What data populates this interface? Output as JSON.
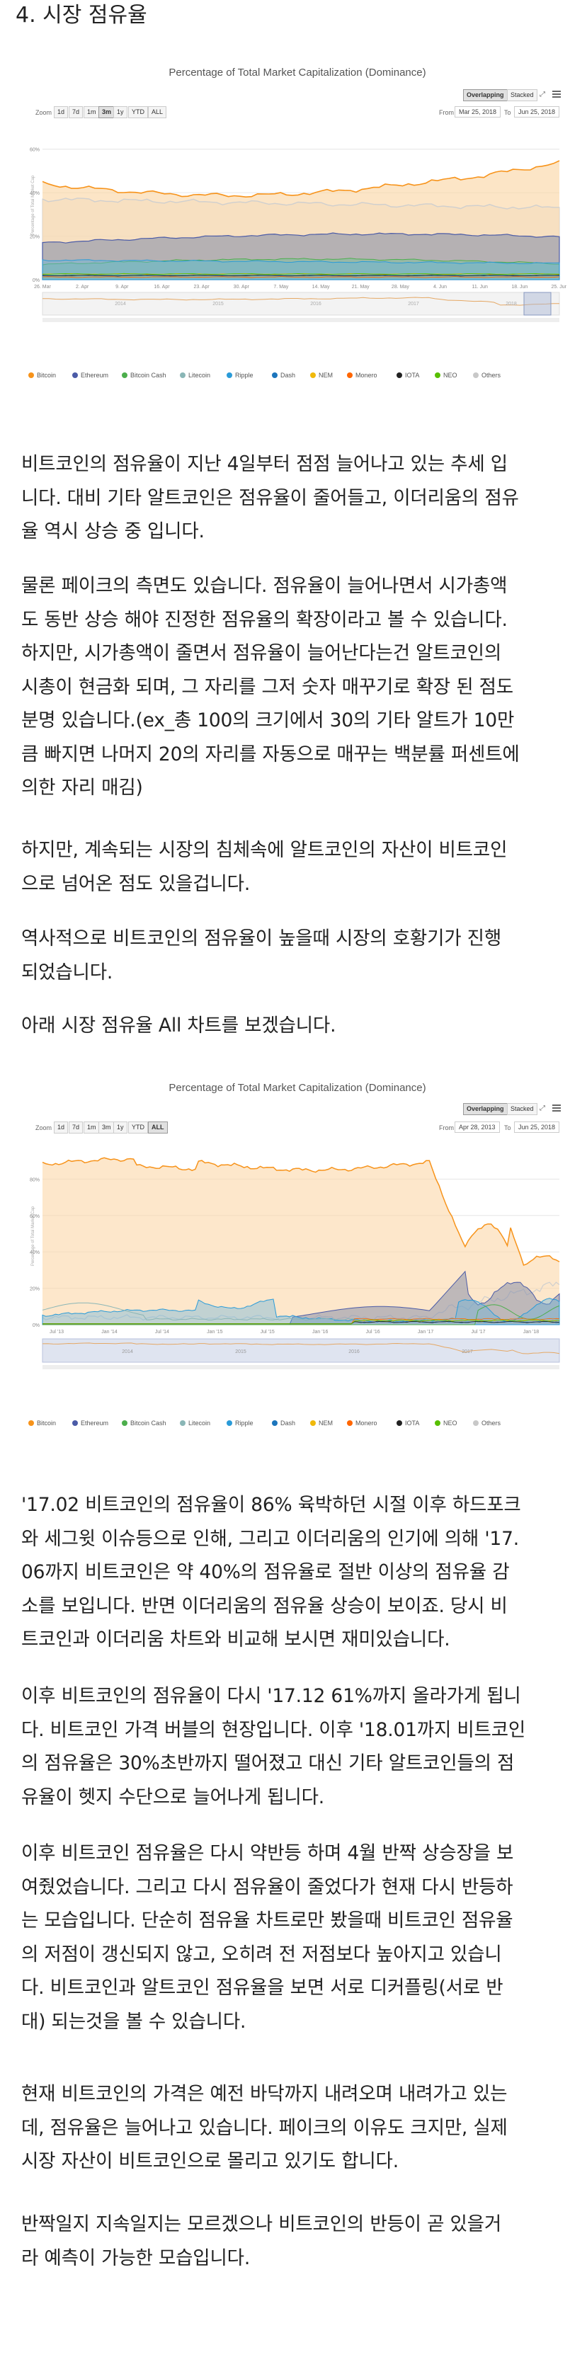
{
  "section_heading": "4. 시장 점유율",
  "chart1": {
    "title": "Percentage of Total Market Capitalization (Dominance)",
    "zoom_label": "Zoom",
    "zoom_buttons": [
      "1d",
      "7d",
      "1m",
      "3m",
      "1y",
      "YTD",
      "ALL"
    ],
    "active_zoom": "3m",
    "mode_buttons": [
      "Overlapping",
      "Stacked"
    ],
    "active_mode": "Overlapping",
    "from_label": "From",
    "from_value": "Mar 25, 2018",
    "to_label": "To",
    "to_value": "Jun 25, 2018",
    "y_axis_label": "Percentage of Total Market Cap",
    "x_ticks": [
      "26. Mar",
      "2. Apr",
      "9. Apr",
      "16. Apr",
      "23. Apr",
      "30. Apr",
      "7. May",
      "14. May",
      "21. May",
      "28. May",
      "4. Jun",
      "11. Jun",
      "18. Jun",
      "25. Jun"
    ],
    "y_ticks": [
      "60%",
      "40%",
      "20%",
      "0%"
    ],
    "navigator_ticks": [
      "2014",
      "2015",
      "2016",
      "2017",
      "2018"
    ]
  },
  "chart2": {
    "title": "Percentage of Total Market Capitalization (Dominance)",
    "zoom_label": "Zoom",
    "zoom_buttons": [
      "1d",
      "7d",
      "1m",
      "3m",
      "1y",
      "YTD",
      "ALL"
    ],
    "active_zoom": "ALL",
    "mode_buttons": [
      "Overlapping",
      "Stacked"
    ],
    "active_mode": "Overlapping",
    "from_label": "From",
    "from_value": "Apr 28, 2013",
    "to_label": "To",
    "to_value": "Jun 25, 2018",
    "y_axis_label": "Percentage of Total Market Cap",
    "x_ticks": [
      "Jul '13",
      "Jan '14",
      "Jul '14",
      "Jan '15",
      "Jul '15",
      "Jan '16",
      "Jul '16",
      "Jan '17",
      "Jul '17",
      "Jan '18"
    ],
    "y_ticks": [
      "80%",
      "60%",
      "40%",
      "20%",
      "0%"
    ],
    "navigator_ticks": [
      "2014",
      "2015",
      "2016",
      "2017"
    ]
  },
  "legend": [
    {
      "name": "Bitcoin",
      "color": "#f7931a"
    },
    {
      "name": "Ethereum",
      "color": "#4b5ba7"
    },
    {
      "name": "Bitcoin Cash",
      "color": "#4cae4c"
    },
    {
      "name": "Litecoin",
      "color": "#8ab6b6"
    },
    {
      "name": "Ripple",
      "color": "#2a9bd8"
    },
    {
      "name": "Dash",
      "color": "#1c75bc"
    },
    {
      "name": "NEM",
      "color": "#f0b90b"
    },
    {
      "name": "Monero",
      "color": "#ff6600"
    },
    {
      "name": "IOTA",
      "color": "#222222"
    },
    {
      "name": "NEO",
      "color": "#58bf00"
    },
    {
      "name": "Others",
      "color": "#c8c8c8"
    }
  ],
  "paragraphs": {
    "p1": [
      "비트코인의 점유율이 지난 4일부터 점점 늘어나고 있는 추세 입",
      "니다. 대비 기타 알트코인은 점유율이 줄어들고, 이더리움의 점유",
      "율 역시 상승 중 입니다."
    ],
    "p2": [
      "물론 페이크의 측면도 있습니다. 점유율이 늘어나면서 시가총액",
      "도 동반 상승 해야 진정한 점유율의 확장이라고 볼 수 있습니다.",
      "하지만, 시가총액이 줄면서 점유율이 늘어난다는건 알트코인의",
      "시총이 현금화 되며, 그 자리를 그저 숫자 매꾸기로 확장 된 점도",
      "분명 있습니다.(ex_총 100의 크기에서 30의 기타 알트가 10만",
      "큼 빠지면 나머지 20의 자리를 자동으로 매꾸는 백분률 퍼센트에",
      "의한 자리 매김)"
    ],
    "p3": [
      "하지만, 계속되는 시장의 침체속에 알트코인의 자산이 비트코인",
      "으로 넘어온 점도 있을겁니다."
    ],
    "p4": [
      "역사적으로 비트코인의 점유율이 높을때 시장의 호황기가 진행",
      "되었습니다."
    ],
    "p5": [
      "아래 시장 점유율 All 차트를 보겠습니다."
    ],
    "p6": [
      "'17.02 비트코인의 점유율이 86% 육박하던 시절 이후 하드포크",
      "와 세그윗 이슈등으로 인해, 그리고 이더리움의 인기에 의해 '17.",
      "06까지 비트코인은 약 40%의 점유율로 절반 이상의 점유율 감",
      "소를 보입니다. 반면 이더리움의 점유율 상승이 보이죠. 당시 비",
      "트코인과 이더리움 차트와 비교해 보시면 재미있습니다."
    ],
    "p7": [
      "이후 비트코인의 점유율이 다시 '17.12 61%까지 올라가게 됩니",
      "다. 비트코인 가격 버블의 현장입니다. 이후 '18.01까지 비트코인",
      "의 점유율은 30%초반까지 떨어졌고 대신 기타 알트코인들의 점",
      "유율이 헷지 수단으로 늘어나게 됩니다."
    ],
    "p8": [
      "이후 비트코인 점유율은 다시 약반등 하며 4월 반짝 상승장을 보",
      "여줬었습니다. 그리고 다시 점유율이 줄었다가 현재 다시 반등하",
      "는 모습입니다. 단순히 점유율 차트로만 봤을때 비트코인 점유율",
      "의 저점이 갱신되지 않고, 오히려 전 저점보다 높아지고 있습니",
      "다. 비트코인과 알트코인 점유율을 보면 서로 디커플링(서로 반",
      "대) 되는것을 볼 수 있습니다."
    ],
    "p9": [
      "현재 비트코인의 가격은 예전 바닥까지 내려오며 내려가고 있는",
      "데, 점유율은 늘어나고 있습니다. 페이크의 이유도 크지만, 실제",
      "시장 자산이 비트코인으로 몰리고 있기도 합니다."
    ],
    "p10": [
      "반짝일지 지속일지는 모르겠으나 비트코인의 반등이 곧 있을거",
      "라 예측이 가능한 모습입니다."
    ]
  }
}
